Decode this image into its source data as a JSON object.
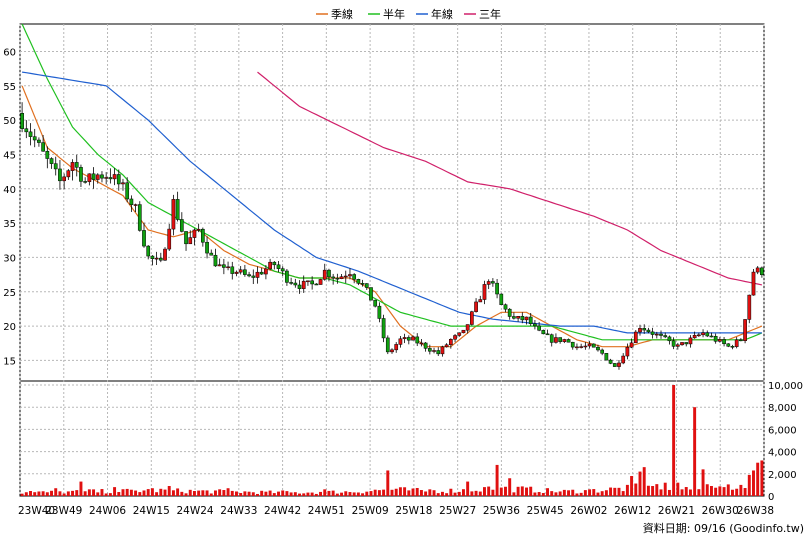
{
  "footer": {
    "source_text": "資料日期: 09/16  (Goodinfo.tw)"
  },
  "colors": {
    "ma_quarter": "#e07020",
    "ma_half": "#20c020",
    "ma_year": "#2060d0",
    "ma_three_year": "#d0206a",
    "candle_up": "#e01010",
    "candle_down": "#10a010",
    "volume": "#e01010",
    "grid": "#b8b8b8",
    "axis": "#000000"
  },
  "chart_data": [
    {
      "type": "candlestick",
      "panel": "price",
      "legend": [
        "季線",
        "半年",
        "年線",
        "三年"
      ],
      "legend_position": "top-center",
      "grid": true,
      "ylim": [
        12,
        64
      ],
      "yticks": [
        15,
        20,
        25,
        30,
        35,
        40,
        45,
        50,
        55,
        60
      ],
      "x_tick_labels": [
        "23W40",
        "23W49",
        "24W06",
        "24W15",
        "24W24",
        "24W33",
        "24W42",
        "24W51",
        "25W09",
        "25W18",
        "25W27",
        "25W36",
        "25W45",
        "26W02",
        "26W12",
        "26W21",
        "26W30",
        "26W38"
      ],
      "close_anchors": [
        [
          0,
          50
        ],
        [
          3,
          47
        ],
        [
          6,
          44
        ],
        [
          9,
          41
        ],
        [
          12,
          44
        ],
        [
          15,
          41
        ],
        [
          18,
          42
        ],
        [
          21,
          42
        ],
        [
          24,
          40
        ],
        [
          27,
          37
        ],
        [
          30,
          30
        ],
        [
          33,
          29
        ],
        [
          36,
          38
        ],
        [
          39,
          32
        ],
        [
          42,
          34
        ],
        [
          45,
          30
        ],
        [
          48,
          28
        ],
        [
          51,
          28
        ],
        [
          54,
          27
        ],
        [
          57,
          28
        ],
        [
          60,
          29
        ],
        [
          63,
          27
        ],
        [
          66,
          26
        ],
        [
          69,
          26
        ],
        [
          72,
          28
        ],
        [
          75,
          27
        ],
        [
          78,
          28
        ],
        [
          81,
          26
        ],
        [
          84,
          23
        ],
        [
          87,
          16
        ],
        [
          90,
          18
        ],
        [
          93,
          18
        ],
        [
          96,
          17
        ],
        [
          99,
          16
        ],
        [
          102,
          18
        ],
        [
          105,
          19
        ],
        [
          108,
          23
        ],
        [
          111,
          27
        ],
        [
          114,
          23
        ],
        [
          117,
          21
        ],
        [
          120,
          21
        ],
        [
          123,
          19
        ],
        [
          126,
          18
        ],
        [
          129,
          18
        ],
        [
          132,
          17
        ],
        [
          135,
          17
        ],
        [
          138,
          16
        ],
        [
          141,
          14
        ],
        [
          144,
          17
        ],
        [
          147,
          20
        ],
        [
          150,
          19
        ],
        [
          153,
          18
        ],
        [
          156,
          17
        ],
        [
          159,
          18
        ],
        [
          162,
          19
        ],
        [
          165,
          18
        ],
        [
          168,
          17
        ],
        [
          171,
          18
        ],
        [
          174,
          28
        ],
        [
          176,
          28
        ]
      ],
      "series": [
        {
          "name": "季線",
          "anchors": [
            [
              0,
              55
            ],
            [
              6,
              46
            ],
            [
              12,
              43
            ],
            [
              18,
              41
            ],
            [
              24,
              39
            ],
            [
              30,
              34
            ],
            [
              36,
              33
            ],
            [
              42,
              34
            ],
            [
              48,
              31
            ],
            [
              54,
              29
            ],
            [
              60,
              28
            ],
            [
              66,
              27
            ],
            [
              72,
              27
            ],
            [
              78,
              27
            ],
            [
              84,
              25
            ],
            [
              90,
              20
            ],
            [
              96,
              17
            ],
            [
              102,
              17
            ],
            [
              108,
              20
            ],
            [
              114,
              22
            ],
            [
              120,
              22
            ],
            [
              126,
              20
            ],
            [
              132,
              18
            ],
            [
              138,
              17
            ],
            [
              144,
              17
            ],
            [
              150,
              18
            ],
            [
              156,
              18
            ],
            [
              162,
              18
            ],
            [
              168,
              18
            ],
            [
              172,
              19
            ],
            [
              176,
              20
            ]
          ]
        },
        {
          "name": "半年",
          "anchors": [
            [
              0,
              64
            ],
            [
              6,
              56
            ],
            [
              12,
              49
            ],
            [
              18,
              45
            ],
            [
              24,
              42
            ],
            [
              30,
              38
            ],
            [
              36,
              36
            ],
            [
              42,
              34
            ],
            [
              48,
              32
            ],
            [
              54,
              30
            ],
            [
              60,
              28
            ],
            [
              66,
              27
            ],
            [
              72,
              27
            ],
            [
              78,
              26
            ],
            [
              84,
              24
            ],
            [
              90,
              22
            ],
            [
              96,
              21
            ],
            [
              102,
              20
            ],
            [
              108,
              20
            ],
            [
              114,
              20
            ],
            [
              120,
              20
            ],
            [
              126,
              20
            ],
            [
              132,
              19
            ],
            [
              138,
              18
            ],
            [
              144,
              18
            ],
            [
              150,
              18
            ],
            [
              156,
              18
            ],
            [
              162,
              18
            ],
            [
              168,
              18
            ],
            [
              172,
              18
            ],
            [
              176,
              19
            ]
          ]
        },
        {
          "name": "年線",
          "anchors": [
            [
              0,
              57
            ],
            [
              10,
              56
            ],
            [
              20,
              55
            ],
            [
              30,
              50
            ],
            [
              40,
              44
            ],
            [
              50,
              39
            ],
            [
              60,
              34
            ],
            [
              70,
              30
            ],
            [
              80,
              28
            ],
            [
              88,
              26
            ],
            [
              96,
              24
            ],
            [
              104,
              22
            ],
            [
              112,
              21
            ],
            [
              120,
              20.5
            ],
            [
              128,
              20
            ],
            [
              136,
              20
            ],
            [
              144,
              19
            ],
            [
              152,
              19
            ],
            [
              160,
              19
            ],
            [
              168,
              19
            ],
            [
              176,
              19
            ]
          ]
        },
        {
          "name": "三年",
          "anchors": [
            [
              56,
              57
            ],
            [
              66,
              52
            ],
            [
              76,
              49
            ],
            [
              86,
              46
            ],
            [
              96,
              44
            ],
            [
              106,
              41
            ],
            [
              116,
              40
            ],
            [
              126,
              38
            ],
            [
              136,
              36
            ],
            [
              144,
              34
            ],
            [
              152,
              31
            ],
            [
              160,
              29
            ],
            [
              168,
              27
            ],
            [
              176,
              26
            ]
          ]
        }
      ]
    },
    {
      "type": "bar",
      "panel": "volume",
      "ylim": [
        0,
        10000
      ],
      "yticks": [
        "0",
        "2,000",
        "4,000",
        "6,000",
        "8,000",
        "10,000"
      ],
      "volume_anchors": [
        [
          0,
          300
        ],
        [
          8,
          350
        ],
        [
          16,
          400
        ],
        [
          24,
          450
        ],
        [
          32,
          500
        ],
        [
          40,
          450
        ],
        [
          48,
          400
        ],
        [
          56,
          350
        ],
        [
          64,
          300
        ],
        [
          72,
          350
        ],
        [
          80,
          400
        ],
        [
          88,
          600
        ],
        [
          96,
          450
        ],
        [
          104,
          500
        ],
        [
          112,
          700
        ],
        [
          120,
          600
        ],
        [
          128,
          400
        ],
        [
          136,
          500
        ],
        [
          144,
          700
        ],
        [
          152,
          900
        ],
        [
          160,
          600
        ],
        [
          168,
          900
        ],
        [
          176,
          1200
        ]
      ],
      "volume_spikes": [
        [
          2,
          450
        ],
        [
          8,
          700
        ],
        [
          14,
          1300
        ],
        [
          16,
          600
        ],
        [
          22,
          800
        ],
        [
          31,
          700
        ],
        [
          35,
          900
        ],
        [
          49,
          700
        ],
        [
          62,
          500
        ],
        [
          72,
          600
        ],
        [
          87,
          2300
        ],
        [
          97,
          600
        ],
        [
          106,
          1300
        ],
        [
          110,
          800
        ],
        [
          113,
          2800
        ],
        [
          116,
          1600
        ],
        [
          135,
          600
        ],
        [
          145,
          1800
        ],
        [
          147,
          2200
        ],
        [
          148,
          2600
        ],
        [
          150,
          900
        ],
        [
          155,
          10000
        ],
        [
          156,
          1200
        ],
        [
          160,
          8000
        ],
        [
          162,
          2400
        ],
        [
          164,
          900
        ],
        [
          167,
          800
        ],
        [
          171,
          1000
        ],
        [
          173,
          1900
        ],
        [
          174,
          2300
        ],
        [
          175,
          3000
        ],
        [
          176,
          3200
        ]
      ]
    }
  ]
}
